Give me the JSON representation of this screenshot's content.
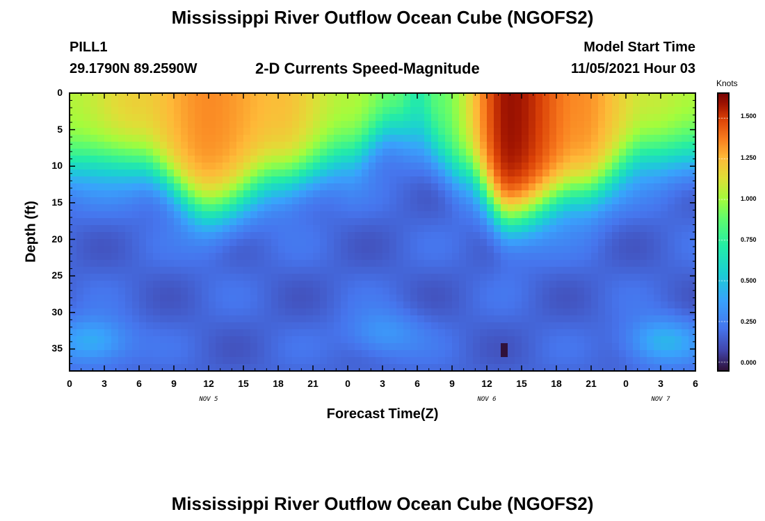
{
  "title": "Mississippi River Outflow Ocean Cube (NGOFS2)",
  "title_repeat": "Mississippi River Outflow Ocean Cube (NGOFS2)",
  "station": {
    "name": "PILL1",
    "location": "29.1790N  89.2590W"
  },
  "subtitle": "2-D Currents Speed-Magnitude",
  "model_start": {
    "label": "Model Start Time",
    "value": "11/05/2021 Hour 03"
  },
  "chart_data": {
    "type": "heatmap",
    "title": "2-D Currents Speed-Magnitude",
    "xlabel": "Forecast Time(Z)",
    "ylabel": "Depth (ft)",
    "x_tick_labels": [
      "0",
      "3",
      "6",
      "9",
      "12",
      "15",
      "18",
      "21",
      "0",
      "3",
      "6",
      "9",
      "12",
      "15",
      "18",
      "21",
      "0",
      "3",
      "6"
    ],
    "x_range_hours": [
      0,
      54
    ],
    "date_labels": [
      {
        "text": "NOV 5",
        "hour": 12
      },
      {
        "text": "NOV 6",
        "hour": 36
      },
      {
        "text": "NOV 7",
        "hour": 51
      }
    ],
    "y_tick_labels": [
      "0",
      "5",
      "10",
      "15",
      "20",
      "25",
      "30",
      "35"
    ],
    "y_range_ft": [
      0,
      38
    ],
    "y_inverted": true,
    "colorbar": {
      "title": "Knots",
      "tick_labels": [
        "1.500",
        "1.250",
        "1.000",
        "0.750",
        "0.500",
        "0.250",
        "0.000"
      ],
      "range": [
        -0.05,
        1.65
      ]
    },
    "surface_speed_knots": [
      {
        "hour": 0,
        "value": 1.05
      },
      {
        "hour": 6,
        "value": 1.2
      },
      {
        "hour": 12,
        "value": 1.35
      },
      {
        "hour": 18,
        "value": 1.25
      },
      {
        "hour": 24,
        "value": 1.05
      },
      {
        "hour": 28,
        "value": 0.95
      },
      {
        "hour": 30,
        "value": 0.75
      },
      {
        "hour": 32,
        "value": 0.9
      },
      {
        "hour": 38,
        "value": 1.6
      },
      {
        "hour": 44,
        "value": 1.35
      },
      {
        "hour": 50,
        "value": 1.1
      },
      {
        "hour": 54,
        "value": 1.05
      }
    ],
    "high_speed_depth_ft": [
      {
        "hour": 0,
        "value": 10
      },
      {
        "hour": 6,
        "value": 10
      },
      {
        "hour": 12,
        "value": 16
      },
      {
        "hour": 18,
        "value": 12
      },
      {
        "hour": 24,
        "value": 9
      },
      {
        "hour": 28,
        "value": 5
      },
      {
        "hour": 30,
        "value": 6
      },
      {
        "hour": 34,
        "value": 11
      },
      {
        "hour": 38,
        "value": 17
      },
      {
        "hour": 44,
        "value": 14
      },
      {
        "hour": 50,
        "value": 9
      },
      {
        "hour": 54,
        "value": 8
      }
    ],
    "deep_highlights": [
      {
        "hour": 2,
        "depth_ft": 34,
        "value": 0.45
      },
      {
        "hour": 51,
        "depth_ft": 34,
        "value": 0.45
      },
      {
        "hour": 27,
        "depth_ft": 33,
        "value": 0.35
      }
    ],
    "minimum_point": {
      "hour": 37.6,
      "depth_ft": 35.5,
      "value": -0.05
    }
  }
}
